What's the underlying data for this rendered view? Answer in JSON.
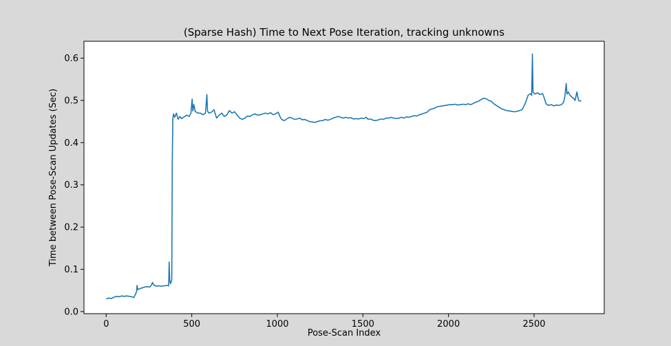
{
  "chart_data": {
    "type": "line",
    "title": "(Sparse Hash) Time to Next Pose Iteration, tracking unknowns",
    "xlabel": "Pose-Scan Index",
    "ylabel": "Time between Pose-Scan Updates (Sec)",
    "xlim": [
      -130,
      2910
    ],
    "ylim": [
      -0.005,
      0.64
    ],
    "x_ticks": [
      0,
      500,
      1000,
      1500,
      2000,
      2500
    ],
    "x_tick_labels": [
      "0",
      "500",
      "1000",
      "1500",
      "2000",
      "2500"
    ],
    "y_ticks": [
      0.0,
      0.1,
      0.2,
      0.3,
      0.4,
      0.5,
      0.6
    ],
    "y_tick_labels": [
      "0.0",
      "0.1",
      "0.2",
      "0.3",
      "0.4",
      "0.5",
      "0.6"
    ],
    "grid": false,
    "legend": "none",
    "colors": {
      "line": "#1f77b4",
      "figure_bg": "#d9d9d9",
      "axes_bg": "#ffffff"
    },
    "series": [
      {
        "color": "#1f77b4",
        "points": [
          [
            0,
            0.03
          ],
          [
            15,
            0.032
          ],
          [
            30,
            0.031
          ],
          [
            45,
            0.034
          ],
          [
            60,
            0.036
          ],
          [
            75,
            0.035
          ],
          [
            90,
            0.037
          ],
          [
            105,
            0.036
          ],
          [
            120,
            0.037
          ],
          [
            135,
            0.036
          ],
          [
            150,
            0.035
          ],
          [
            160,
            0.033
          ],
          [
            170,
            0.04
          ],
          [
            178,
            0.048
          ],
          [
            180,
            0.062
          ],
          [
            185,
            0.052
          ],
          [
            195,
            0.054
          ],
          [
            210,
            0.056
          ],
          [
            225,
            0.058
          ],
          [
            240,
            0.059
          ],
          [
            255,
            0.058
          ],
          [
            265,
            0.063
          ],
          [
            270,
            0.069
          ],
          [
            280,
            0.062
          ],
          [
            295,
            0.06
          ],
          [
            310,
            0.061
          ],
          [
            325,
            0.06
          ],
          [
            340,
            0.061
          ],
          [
            355,
            0.062
          ],
          [
            365,
            0.061
          ],
          [
            368,
            0.117
          ],
          [
            371,
            0.075
          ],
          [
            375,
            0.066
          ],
          [
            380,
            0.07
          ],
          [
            383,
            0.076
          ],
          [
            386,
            0.35
          ],
          [
            389,
            0.455
          ],
          [
            393,
            0.468
          ],
          [
            400,
            0.46
          ],
          [
            410,
            0.47
          ],
          [
            420,
            0.455
          ],
          [
            430,
            0.462
          ],
          [
            440,
            0.457
          ],
          [
            455,
            0.461
          ],
          [
            470,
            0.465
          ],
          [
            485,
            0.462
          ],
          [
            495,
            0.47
          ],
          [
            502,
            0.503
          ],
          [
            506,
            0.475
          ],
          [
            512,
            0.49
          ],
          [
            520,
            0.474
          ],
          [
            535,
            0.47
          ],
          [
            550,
            0.47
          ],
          [
            565,
            0.466
          ],
          [
            580,
            0.47
          ],
          [
            588,
            0.514
          ],
          [
            592,
            0.475
          ],
          [
            600,
            0.47
          ],
          [
            615,
            0.472
          ],
          [
            630,
            0.478
          ],
          [
            645,
            0.458
          ],
          [
            660,
            0.465
          ],
          [
            675,
            0.47
          ],
          [
            690,
            0.462
          ],
          [
            705,
            0.466
          ],
          [
            720,
            0.476
          ],
          [
            735,
            0.47
          ],
          [
            750,
            0.473
          ],
          [
            765,
            0.465
          ],
          [
            780,
            0.458
          ],
          [
            795,
            0.455
          ],
          [
            810,
            0.458
          ],
          [
            825,
            0.463
          ],
          [
            840,
            0.462
          ],
          [
            855,
            0.466
          ],
          [
            870,
            0.468
          ],
          [
            885,
            0.465
          ],
          [
            900,
            0.466
          ],
          [
            915,
            0.468
          ],
          [
            930,
            0.47
          ],
          [
            945,
            0.468
          ],
          [
            960,
            0.471
          ],
          [
            975,
            0.466
          ],
          [
            990,
            0.468
          ],
          [
            1005,
            0.472
          ],
          [
            1015,
            0.462
          ],
          [
            1025,
            0.455
          ],
          [
            1040,
            0.452
          ],
          [
            1055,
            0.456
          ],
          [
            1070,
            0.46
          ],
          [
            1085,
            0.458
          ],
          [
            1100,
            0.455
          ],
          [
            1115,
            0.456
          ],
          [
            1130,
            0.458
          ],
          [
            1145,
            0.454
          ],
          [
            1160,
            0.455
          ],
          [
            1175,
            0.452
          ],
          [
            1190,
            0.45
          ],
          [
            1205,
            0.449
          ],
          [
            1220,
            0.448
          ],
          [
            1235,
            0.45
          ],
          [
            1250,
            0.452
          ],
          [
            1265,
            0.452
          ],
          [
            1280,
            0.455
          ],
          [
            1295,
            0.453
          ],
          [
            1310,
            0.455
          ],
          [
            1325,
            0.458
          ],
          [
            1340,
            0.46
          ],
          [
            1355,
            0.462
          ],
          [
            1370,
            0.46
          ],
          [
            1385,
            0.458
          ],
          [
            1400,
            0.46
          ],
          [
            1415,
            0.458
          ],
          [
            1430,
            0.459
          ],
          [
            1445,
            0.456
          ],
          [
            1460,
            0.457
          ],
          [
            1475,
            0.456
          ],
          [
            1490,
            0.458
          ],
          [
            1505,
            0.457
          ],
          [
            1520,
            0.46
          ],
          [
            1530,
            0.455
          ],
          [
            1545,
            0.456
          ],
          [
            1560,
            0.453
          ],
          [
            1575,
            0.452
          ],
          [
            1590,
            0.454
          ],
          [
            1605,
            0.456
          ],
          [
            1620,
            0.455
          ],
          [
            1635,
            0.458
          ],
          [
            1650,
            0.458
          ],
          [
            1665,
            0.46
          ],
          [
            1680,
            0.458
          ],
          [
            1695,
            0.457
          ],
          [
            1710,
            0.458
          ],
          [
            1725,
            0.46
          ],
          [
            1740,
            0.458
          ],
          [
            1755,
            0.461
          ],
          [
            1770,
            0.46
          ],
          [
            1785,
            0.462
          ],
          [
            1800,
            0.464
          ],
          [
            1815,
            0.463
          ],
          [
            1830,
            0.466
          ],
          [
            1845,
            0.468
          ],
          [
            1860,
            0.47
          ],
          [
            1875,
            0.472
          ],
          [
            1890,
            0.478
          ],
          [
            1905,
            0.48
          ],
          [
            1920,
            0.482
          ],
          [
            1935,
            0.485
          ],
          [
            1950,
            0.486
          ],
          [
            1965,
            0.487
          ],
          [
            1980,
            0.488
          ],
          [
            1995,
            0.489
          ],
          [
            2010,
            0.49
          ],
          [
            2025,
            0.49
          ],
          [
            2040,
            0.491
          ],
          [
            2055,
            0.489
          ],
          [
            2070,
            0.49
          ],
          [
            2085,
            0.491
          ],
          [
            2100,
            0.49
          ],
          [
            2115,
            0.492
          ],
          [
            2130,
            0.49
          ],
          [
            2145,
            0.493
          ],
          [
            2160,
            0.496
          ],
          [
            2175,
            0.498
          ],
          [
            2190,
            0.502
          ],
          [
            2205,
            0.505
          ],
          [
            2220,
            0.504
          ],
          [
            2235,
            0.5
          ],
          [
            2250,
            0.498
          ],
          [
            2265,
            0.492
          ],
          [
            2280,
            0.488
          ],
          [
            2295,
            0.484
          ],
          [
            2310,
            0.48
          ],
          [
            2325,
            0.478
          ],
          [
            2340,
            0.476
          ],
          [
            2355,
            0.475
          ],
          [
            2370,
            0.474
          ],
          [
            2385,
            0.473
          ],
          [
            2400,
            0.474
          ],
          [
            2415,
            0.476
          ],
          [
            2430,
            0.478
          ],
          [
            2445,
            0.49
          ],
          [
            2455,
            0.5
          ],
          [
            2465,
            0.512
          ],
          [
            2478,
            0.516
          ],
          [
            2486,
            0.512
          ],
          [
            2490,
            0.61
          ],
          [
            2494,
            0.52
          ],
          [
            2505,
            0.515
          ],
          [
            2520,
            0.518
          ],
          [
            2535,
            0.514
          ],
          [
            2550,
            0.516
          ],
          [
            2560,
            0.505
          ],
          [
            2570,
            0.492
          ],
          [
            2585,
            0.488
          ],
          [
            2600,
            0.49
          ],
          [
            2615,
            0.487
          ],
          [
            2630,
            0.489
          ],
          [
            2645,
            0.488
          ],
          [
            2660,
            0.49
          ],
          [
            2672,
            0.495
          ],
          [
            2680,
            0.51
          ],
          [
            2688,
            0.54
          ],
          [
            2692,
            0.515
          ],
          [
            2700,
            0.52
          ],
          [
            2710,
            0.512
          ],
          [
            2720,
            0.508
          ],
          [
            2730,
            0.505
          ],
          [
            2740,
            0.5
          ],
          [
            2750,
            0.52
          ],
          [
            2760,
            0.5
          ],
          [
            2770,
            0.498
          ],
          [
            2775,
            0.5
          ]
        ]
      }
    ]
  }
}
